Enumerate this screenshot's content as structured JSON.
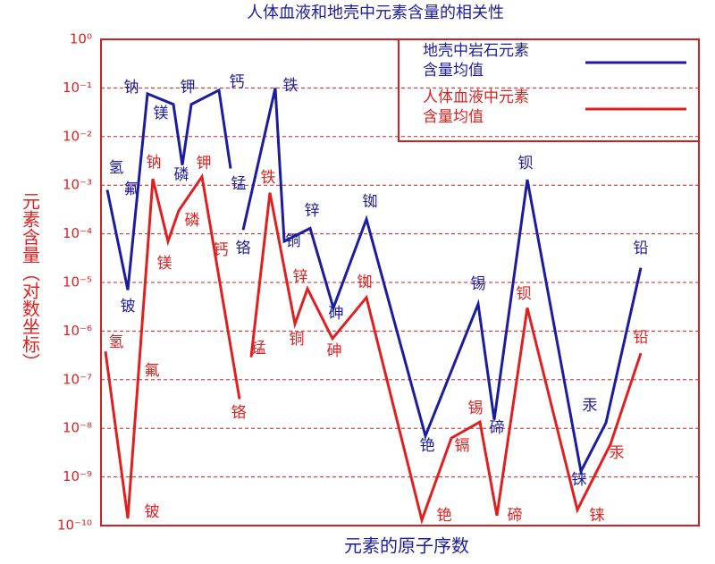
{
  "chart_data": {
    "type": "line",
    "title": "人体血液和地壳中元素含量的相关性",
    "x_label": "元素的原子序数",
    "y_label": "元素含量（对数坐标）",
    "ylog": true,
    "grid": true,
    "legend": "top-right",
    "ylim": [
      1e-10,
      1
    ],
    "yticks": [
      {
        "value": 1,
        "label": "10⁰"
      },
      {
        "value": 0.1,
        "label": "10⁻¹"
      },
      {
        "value": 0.01,
        "label": "10⁻²"
      },
      {
        "value": 0.001,
        "label": "10⁻³"
      },
      {
        "value": 0.0001,
        "label": "10⁻⁴"
      },
      {
        "value": 1e-05,
        "label": "10⁻⁵"
      },
      {
        "value": 1e-06,
        "label": "10⁻⁶"
      },
      {
        "value": 1e-07,
        "label": "10⁻⁷"
      },
      {
        "value": 1e-08,
        "label": "10⁻⁸"
      },
      {
        "value": 1e-09,
        "label": "10⁻⁹"
      },
      {
        "value": 1e-10,
        "label": "10⁻¹⁰"
      }
    ],
    "series": [
      {
        "name": "地壳中岩石元素含量均值",
        "color": "#1c1ca0",
        "categories": [
          "氢",
          "铍",
          "钠",
          "镁",
          "磷",
          "钾",
          "钙",
          "锰",
          null,
          "铬",
          "铁",
          "铜",
          "锌",
          "砷",
          "铷",
          "铯",
          "锡",
          "碲",
          "钡",
          "铼",
          "汞",
          "铅"
        ],
        "values": [
          0.0008,
          7e-06,
          0.076,
          0.046,
          0.0026,
          0.046,
          0.09,
          0.0022,
          null,
          0.00012,
          0.1,
          7e-05,
          0.00013,
          3e-06,
          0.0002,
          7e-09,
          3.6e-06,
          1.5e-08,
          0.0013,
          1.3e-09,
          1.3e-08,
          2e-05
        ],
        "notes": [
          "氟"
        ]
      },
      {
        "name": "人体血液中元素含量均值",
        "color": "#e02020",
        "categories": [
          "氢",
          "铍",
          "钠",
          "镁",
          "磷",
          "钾",
          "铬",
          null,
          "锰",
          "铁",
          "铜",
          "锌",
          "砷",
          "铷",
          "铯",
          "镉",
          "锡",
          "碲",
          "钡",
          "铼",
          "汞",
          "铅"
        ],
        "values": [
          3.8e-07,
          1.4e-10,
          0.00135,
          7e-05,
          0.0003,
          0.0015,
          4e-08,
          null,
          2.9e-07,
          0.0007,
          1.4e-06,
          7.4e-06,
          7e-07,
          4.9e-06,
          1.3e-10,
          6.3e-09,
          1.35e-08,
          1.6e-10,
          3e-06,
          2.1e-10,
          4.7e-09,
          3.5e-07
        ],
        "notes": [
          "氟",
          "钙"
        ]
      }
    ]
  }
}
